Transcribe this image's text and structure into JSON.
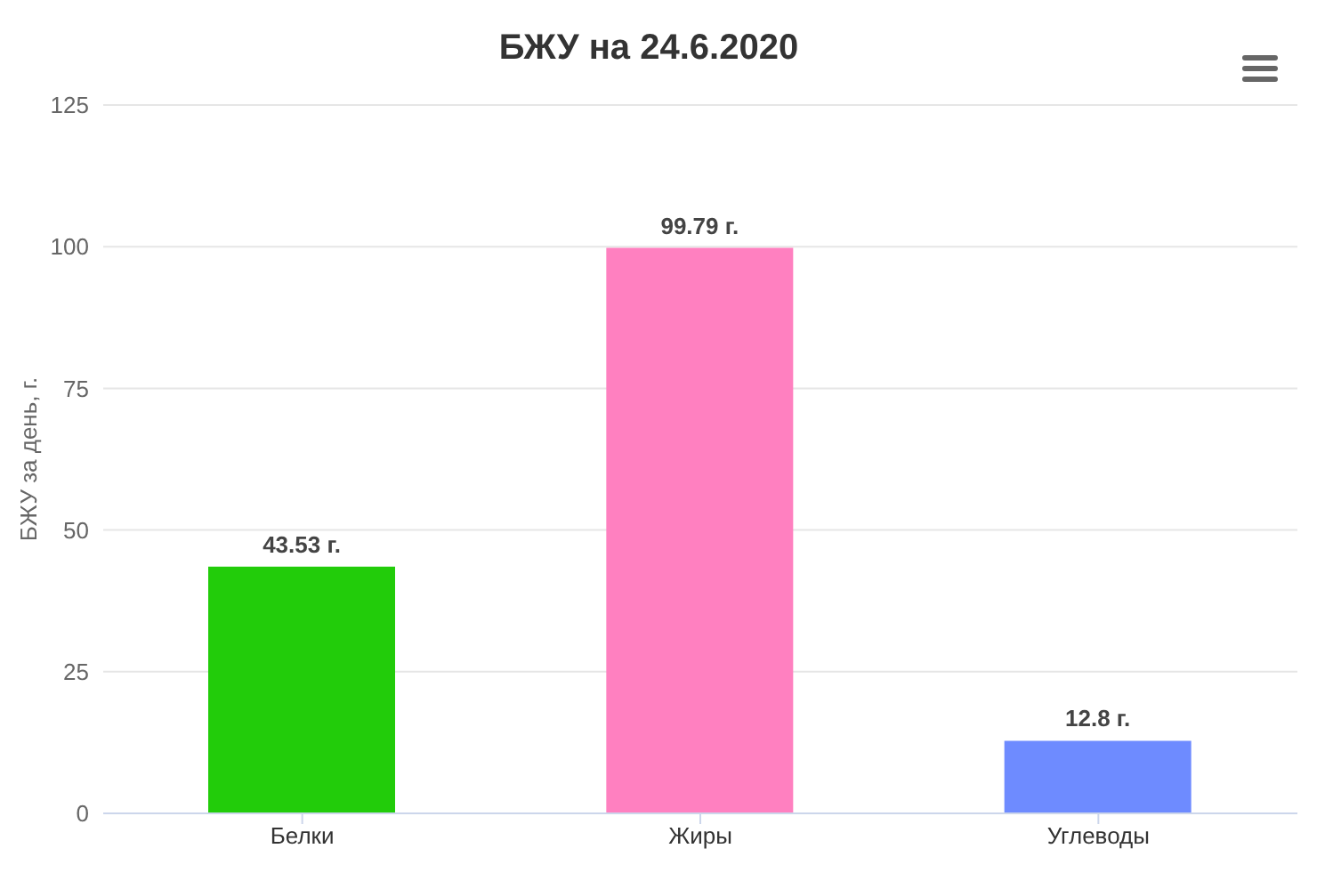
{
  "chart_data": {
    "type": "bar",
    "title": "БЖУ на 24.6.2020",
    "ylabel": "БЖУ за день, г.",
    "categories": [
      "Белки",
      "Жиры",
      "Углеводы"
    ],
    "values": [
      43.53,
      99.79,
      12.8
    ],
    "colors": [
      "#22cc0a",
      "#ff80c0",
      "#6e8bff"
    ],
    "value_labels": [
      "43.53 г.",
      "99.79 г.",
      "12.8 г."
    ],
    "ylim": [
      0,
      125
    ],
    "yticks": [
      0,
      25,
      50,
      75,
      100,
      125
    ],
    "grid": "y",
    "legend": false
  }
}
